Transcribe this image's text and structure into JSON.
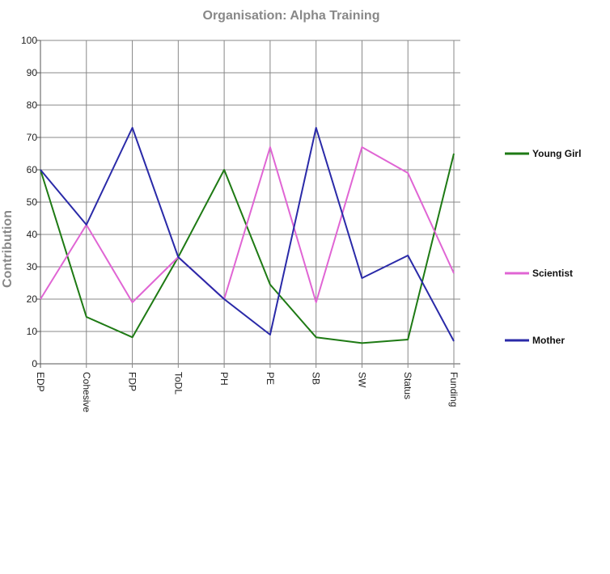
{
  "chart_data": {
    "type": "line",
    "title": "Organisation: Alpha Training",
    "xlabel": "",
    "ylabel": "Contribution",
    "ylim": [
      0,
      100
    ],
    "yticks": [
      "0",
      "10",
      "20",
      "30",
      "40",
      "50",
      "60",
      "70",
      "80",
      "90",
      "100"
    ],
    "categories": [
      "EDP",
      "Cohesive",
      "FDP",
      "ToDL",
      "PH",
      "PE",
      "SB",
      "SW",
      "Status",
      "Funding"
    ],
    "grid": true,
    "legend_position": "right",
    "series": [
      {
        "name": "Young Girl",
        "color": "#1e7a14",
        "values": [
          60,
          14.5,
          8.2,
          33,
          60,
          24.5,
          8.2,
          6.4,
          7.5,
          65
        ]
      },
      {
        "name": "Scientist",
        "color": "#e065d4",
        "values": [
          20,
          43,
          19,
          33,
          20,
          67,
          19,
          67,
          59,
          28
        ]
      },
      {
        "name": "Mother",
        "color": "#2a2aa8",
        "values": [
          60,
          43,
          73,
          33,
          20,
          9,
          73,
          26.5,
          33.5,
          7
        ]
      }
    ]
  }
}
